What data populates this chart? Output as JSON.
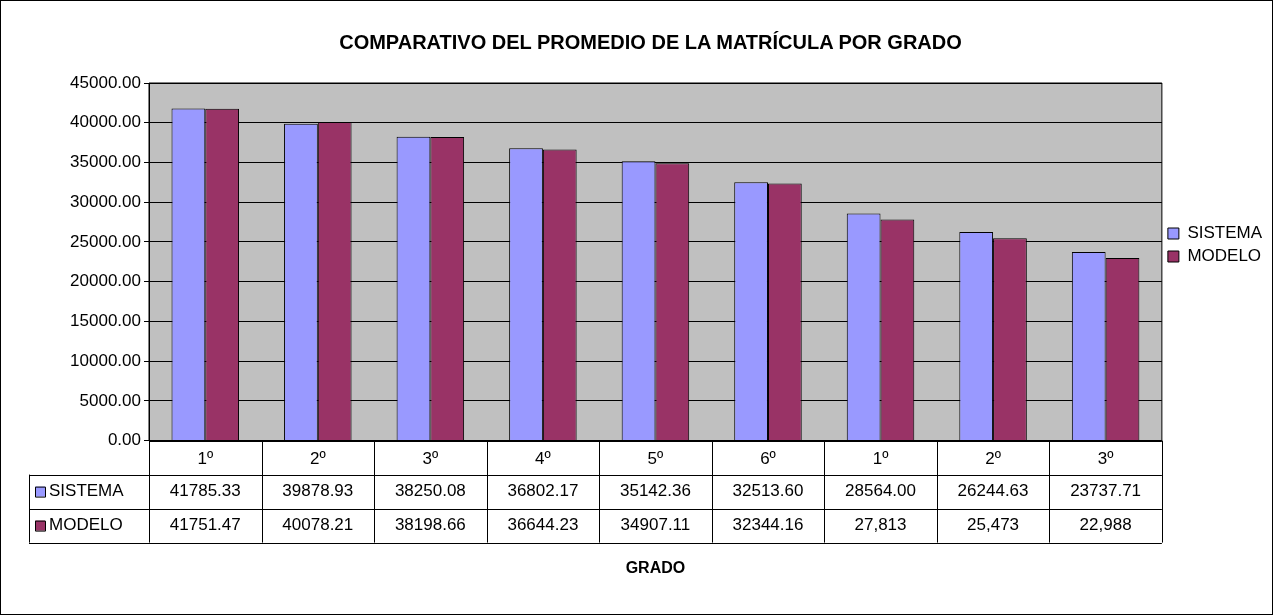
{
  "chart_data": {
    "type": "bar",
    "title": "COMPARATIVO DEL PROMEDIO DE LA MATRÍCULA POR GRADO",
    "annotations": [
      "GRADO"
    ],
    "categories": [
      "1º",
      "2º",
      "3º",
      "4º",
      "5º",
      "6º",
      "1º",
      "2º",
      "3º"
    ],
    "series": [
      {
        "name": "SISTEMA",
        "color": "#9999ff",
        "values": [
          41785.33,
          39878.93,
          38250.08,
          36802.17,
          35142.36,
          32513.6,
          28564,
          26244.63,
          23737.71
        ],
        "value_labels": [
          "41785.33",
          "39878.93",
          "38250.08",
          "36802.17",
          "35142.36",
          "32513.60",
          "28564.00",
          "26244.63",
          "23737.71"
        ]
      },
      {
        "name": "MODELO",
        "color": "#993366",
        "values": [
          41751.47,
          40078.21,
          38198.66,
          36644.23,
          34907.11,
          32344.16,
          27813,
          25473,
          22988
        ],
        "value_labels": [
          "41751.47",
          "40078.21",
          "38198.66",
          "36644.23",
          "34907.11",
          "32344.16",
          "27,813",
          "25,473",
          "22,988"
        ]
      }
    ],
    "ylim": [
      0,
      45000
    ],
    "yticks": [
      {
        "value": 0,
        "label": "0.00"
      },
      {
        "value": 5000,
        "label": "5000.00"
      },
      {
        "value": 10000,
        "label": "10000.00"
      },
      {
        "value": 15000,
        "label": "15000.00"
      },
      {
        "value": 20000,
        "label": "20000.00"
      },
      {
        "value": 25000,
        "label": "25000.00"
      },
      {
        "value": 30000,
        "label": "30000.00"
      },
      {
        "value": 35000,
        "label": "35000.00"
      },
      {
        "value": 40000,
        "label": "40000.00"
      },
      {
        "value": 45000,
        "label": "45000.00"
      }
    ],
    "grid": "y",
    "legend": "right"
  }
}
